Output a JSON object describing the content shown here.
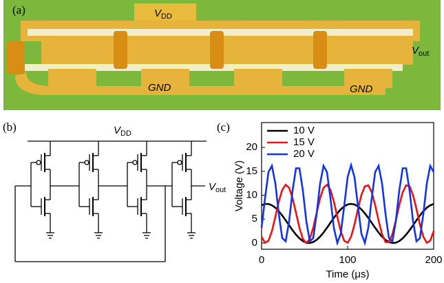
{
  "panels": {
    "a": {
      "label": "(a)",
      "vdd": {
        "symbol": "V",
        "subscript": "DD"
      },
      "vout": {
        "symbol": "V",
        "subscript": "out"
      },
      "gnd_left": "GND",
      "gnd_right": "GND"
    },
    "b": {
      "label": "(b)",
      "vdd": {
        "symbol": "V",
        "subscript": "DD"
      },
      "vout": {
        "symbol": "V",
        "subscript": "out"
      }
    },
    "c": {
      "label": "(c)"
    }
  },
  "chart_data": {
    "type": "line",
    "x_label": "Time (μs)",
    "y_label": "Voltage (V)",
    "x": [
      0,
      4,
      8,
      12,
      16,
      20,
      24,
      28,
      32,
      36,
      40,
      44,
      48,
      52,
      56,
      60,
      64,
      68,
      72,
      76,
      80,
      84,
      88,
      92,
      96,
      100,
      104,
      108,
      112,
      116,
      120,
      124,
      128,
      132,
      136,
      140,
      144,
      148,
      152,
      156,
      160,
      164,
      168,
      172,
      176,
      180,
      184,
      188,
      192,
      196,
      200
    ],
    "series": [
      {
        "name": "10 V",
        "color": "#000000",
        "values": [
          7.9,
          8.17,
          8.17,
          7.9,
          7.39,
          6.66,
          5.76,
          4.76,
          3.71,
          2.69,
          1.75,
          0.98,
          0.41,
          0.07,
          0.01,
          0.21,
          0.66,
          1.34,
          2.2,
          3.19,
          4.23,
          5.26,
          6.22,
          7.04,
          7.67,
          8.06,
          8.2,
          8.06,
          7.67,
          7.04,
          6.22,
          5.26,
          4.23,
          3.19,
          2.2,
          1.34,
          0.66,
          0.21,
          0.01,
          0.07,
          0.41,
          0.98,
          1.75,
          2.69,
          3.71,
          4.76,
          5.76,
          6.66,
          7.39,
          7.9,
          8.17
        ]
      },
      {
        "name": "15 V",
        "color": "#ee1111",
        "values": [
          1.31,
          0.05,
          0.48,
          2.48,
          5.49,
          8.67,
          11.13,
          12.19,
          11.55,
          9.38,
          6.3,
          3.17,
          0.85,
          0.0,
          0.85,
          3.17,
          6.3,
          9.39,
          11.55,
          12.19,
          11.13,
          8.67,
          5.48,
          2.48,
          0.48,
          0.05,
          1.31,
          3.92,
          7.12,
          10.05,
          11.86,
          12.08,
          10.62,
          7.91,
          4.68,
          1.85,
          0.21,
          0.22,
          1.86,
          4.7,
          7.91,
          10.63,
          12.08,
          11.86,
          10.02,
          7.11,
          3.9,
          1.31,
          0.05,
          0.49,
          2.49
        ]
      },
      {
        "name": "20 V",
        "color": "#1133ee",
        "values": [
          3.16,
          9.38,
          14.84,
          16.14,
          12.46,
          6.11,
          1.02,
          0.37,
          4.56,
          10.98,
          15.64,
          15.64,
          10.98,
          4.56,
          0.37,
          1.02,
          6.11,
          12.45,
          16.14,
          14.84,
          9.38,
          3.16,
          0.04,
          1.97,
          7.73,
          13.77,
          16.3,
          13.76,
          7.73,
          1.96,
          0.04,
          3.16,
          9.38,
          14.84,
          16.14,
          12.46,
          6.11,
          1.02,
          0.37,
          4.56,
          10.98,
          15.64,
          15.64,
          10.98,
          4.56,
          0.37,
          1.02,
          6.11,
          12.45,
          16.14,
          14.84
        ]
      }
    ],
    "xlim": [
      0,
      200
    ],
    "xticks": [
      0,
      100,
      200
    ],
    "ylim": [
      -1.3,
      25.2
    ],
    "yticks": [
      0,
      5,
      10,
      15,
      20
    ],
    "legend": "upper left"
  }
}
